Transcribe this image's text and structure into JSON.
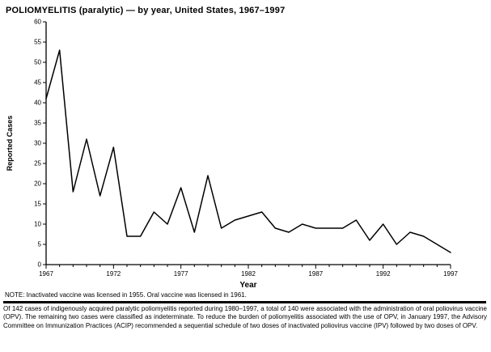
{
  "title": "POLIOMYELITIS (paralytic) — by year, United States, 1967–1997",
  "note": "NOTE: Inactivated vaccine was licensed in 1955. Oral vaccine was licensed in 1961.",
  "footnote": "Of 142 cases of indigenously acquired paralytic poliomyelitis reported during 1980–1997, a total of 140 were associated with the administration of oral poliovirus vaccine (OPV). The remaining two cases were classified as indeterminate. To reduce the burden of poliomyelitis associated with the use of OPV, in January 1997, the Advisory Committee on Immunization Practices (ACIP) recommended a sequential schedule of two doses of inactivated poliovirus vaccine (IPV) followed by two doses of OPV.",
  "chart_data": {
    "type": "line",
    "title": "POLIOMYELITIS (paralytic) — by year, United States, 1967–1997",
    "xlabel": "Year",
    "ylabel": "Reported Cases",
    "ylim": [
      0,
      60
    ],
    "y_tick_step": 5,
    "x_major_ticks": [
      1967,
      1972,
      1977,
      1982,
      1987,
      1992,
      1997
    ],
    "x": [
      1967,
      1968,
      1969,
      1970,
      1971,
      1972,
      1973,
      1974,
      1975,
      1976,
      1977,
      1978,
      1979,
      1980,
      1981,
      1982,
      1983,
      1984,
      1985,
      1986,
      1987,
      1988,
      1989,
      1990,
      1991,
      1992,
      1993,
      1994,
      1995,
      1996,
      1997
    ],
    "values": [
      41,
      53,
      18,
      31,
      17,
      29,
      7,
      7,
      13,
      10,
      19,
      8,
      22,
      9,
      11,
      12,
      13,
      9,
      8,
      10,
      9,
      9,
      9,
      11,
      6,
      10,
      5,
      8,
      7,
      5,
      3
    ],
    "line_color": "#000000",
    "grid": false,
    "legend": "none"
  }
}
